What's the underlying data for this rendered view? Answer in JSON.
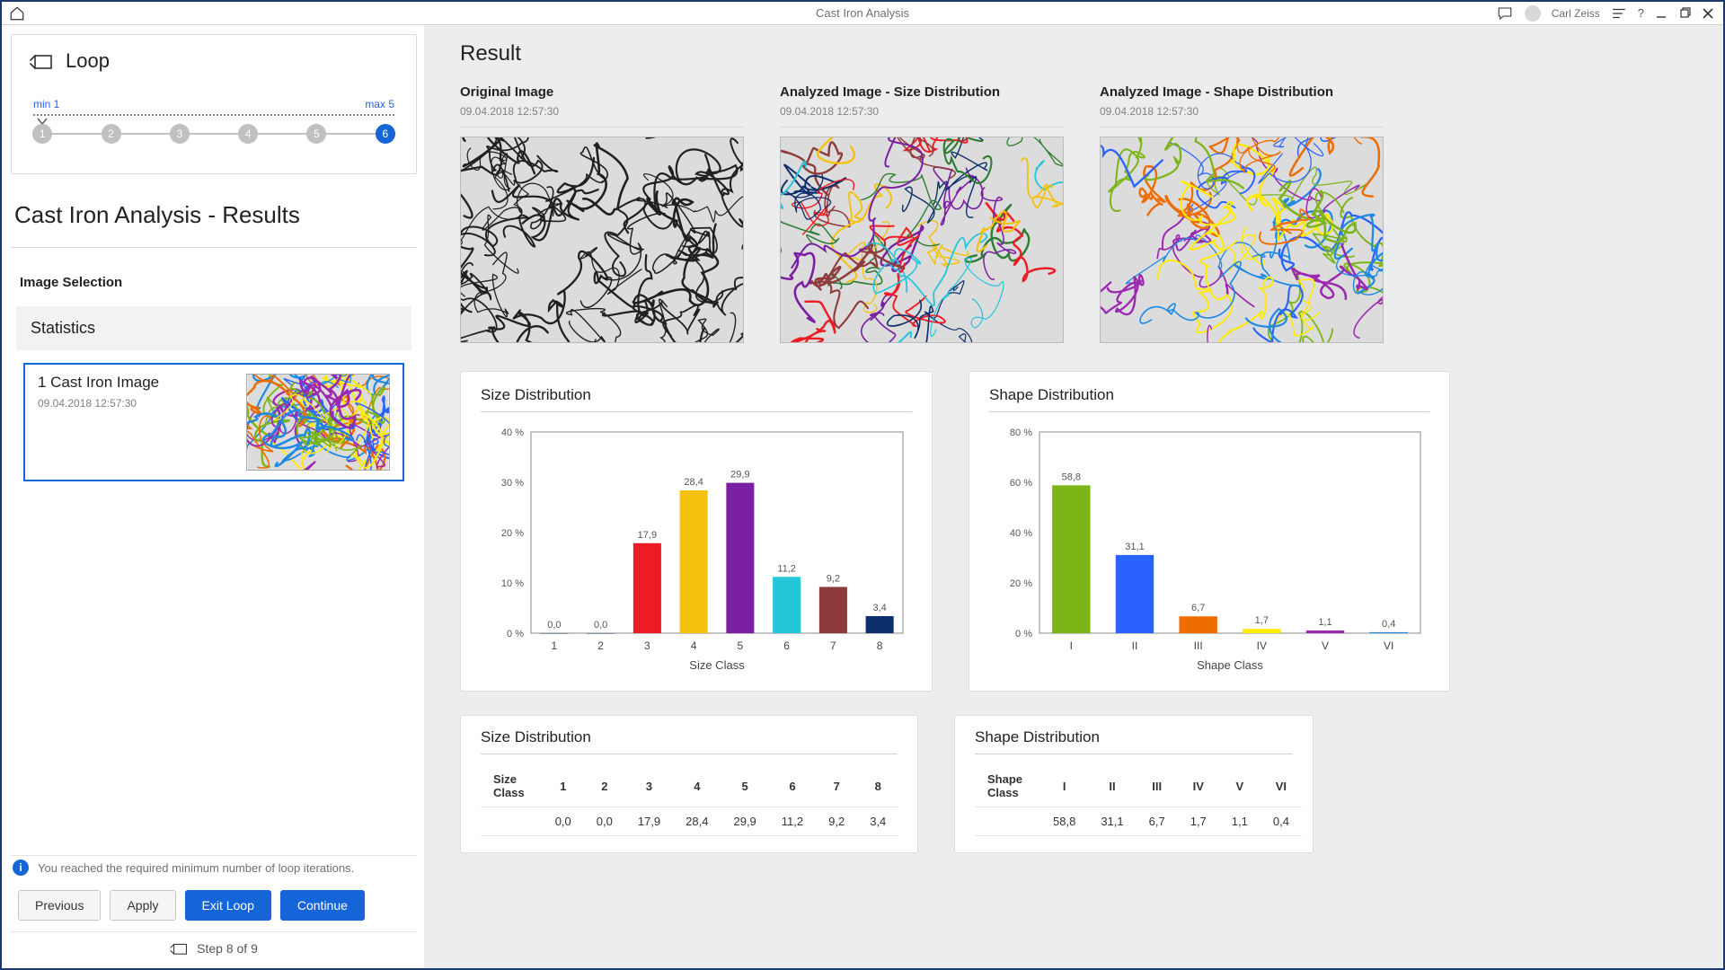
{
  "app_title": "Cast Iron Analysis",
  "user_name": "Carl Zeiss",
  "colors": {
    "accent": "#1565d8",
    "border": "#d9d9d9",
    "bg_main": "#ebedef",
    "text": "#222222",
    "text_muted": "#707070"
  },
  "loop": {
    "label": "Loop",
    "min_label": "min 1",
    "max_label": "max 5",
    "steps": [
      "1",
      "2",
      "3",
      "4",
      "5",
      "6"
    ],
    "active_index": 5
  },
  "page_title": "Cast Iron Analysis - Results",
  "image_selection": {
    "title": "Image Selection",
    "stats_label": "Statistics",
    "card": {
      "name": "1 Cast Iron Image",
      "timestamp": "09.04.2018 12:57:30"
    }
  },
  "info_message": "You reached the required minimum number of loop iterations.",
  "buttons": {
    "previous": "Previous",
    "apply": "Apply",
    "exit_loop": "Exit Loop",
    "continue": "Continue"
  },
  "step_indicator": "Step 8 of 9",
  "result_heading": "Result",
  "images": {
    "original": {
      "label": "Original Image",
      "timestamp": "09.04.2018 12:57:30"
    },
    "size": {
      "label": "Analyzed Image - Size Distribution",
      "timestamp": "09.04.2018 12:57:30"
    },
    "shape": {
      "label": "Analyzed Image - Shape Distribution",
      "timestamp": "09.04.2018 12:57:30"
    }
  },
  "size_chart": {
    "type": "bar",
    "title": "Size Distribution",
    "x_axis_label": "Size Class",
    "categories": [
      "1",
      "2",
      "3",
      "4",
      "5",
      "6",
      "7",
      "8"
    ],
    "values": [
      0.0,
      0.0,
      17.9,
      28.4,
      29.9,
      11.2,
      9.2,
      3.4
    ],
    "value_labels": [
      "0,0",
      "0,0",
      "17,9",
      "28,4",
      "29,9",
      "11,2",
      "9,2",
      "3,4"
    ],
    "bar_colors": [
      "#8a9aa8",
      "#8a9aa8",
      "#ed1c24",
      "#f4c20d",
      "#7b1fa2",
      "#26c6da",
      "#8e3b3b",
      "#0d2f6c"
    ],
    "ylim": [
      0,
      40
    ],
    "ytick_step": 10,
    "ytick_format": "{v} %",
    "bar_width": 0.6,
    "background_color": "#ffffff",
    "border_color": "#888888",
    "label_fontsize": 11,
    "title_fontsize": 17
  },
  "shape_chart": {
    "type": "bar",
    "title": "Shape Distribution",
    "x_axis_label": "Shape Class",
    "categories": [
      "I",
      "II",
      "III",
      "IV",
      "V",
      "VI"
    ],
    "values": [
      58.8,
      31.1,
      6.7,
      1.7,
      1.1,
      0.4
    ],
    "value_labels": [
      "58,8",
      "31,1",
      "6,7",
      "1,7",
      "1,1",
      "0,4"
    ],
    "bar_colors": [
      "#7cb518",
      "#2962ff",
      "#ef6c00",
      "#ffea00",
      "#9c27b0",
      "#1e88e5"
    ],
    "ylim": [
      0,
      80
    ],
    "ytick_step": 20,
    "ytick_format": "{v} %",
    "bar_width": 0.6,
    "background_color": "#ffffff",
    "border_color": "#888888",
    "label_fontsize": 11,
    "title_fontsize": 17
  },
  "size_table": {
    "title": "Size Distribution",
    "lead_header": "Size Class",
    "headers": [
      "1",
      "2",
      "3",
      "4",
      "5",
      "6",
      "7",
      "8"
    ],
    "row": [
      "0,0",
      "0,0",
      "17,9",
      "28,4",
      "29,9",
      "11,2",
      "9,2",
      "3,4"
    ]
  },
  "shape_table": {
    "title": "Shape Distribution",
    "lead_header": "Shape Class",
    "headers": [
      "I",
      "II",
      "III",
      "IV",
      "V",
      "VI"
    ],
    "row": [
      "58,8",
      "31,1",
      "6,7",
      "1,7",
      "1,1",
      "0,4"
    ]
  },
  "micro_palette": {
    "gray": [
      "#dcdcdc",
      "#202020"
    ],
    "size": [
      "#dcdcdc",
      "#ed1c24",
      "#f4c20d",
      "#7b1fa2",
      "#26c6da",
      "#8e3b3b",
      "#0d2f6c",
      "#2e7d32"
    ],
    "shape": [
      "#dcdcdc",
      "#7cb518",
      "#2962ff",
      "#ef6c00",
      "#ffea00",
      "#9c27b0",
      "#1e88e5"
    ]
  }
}
